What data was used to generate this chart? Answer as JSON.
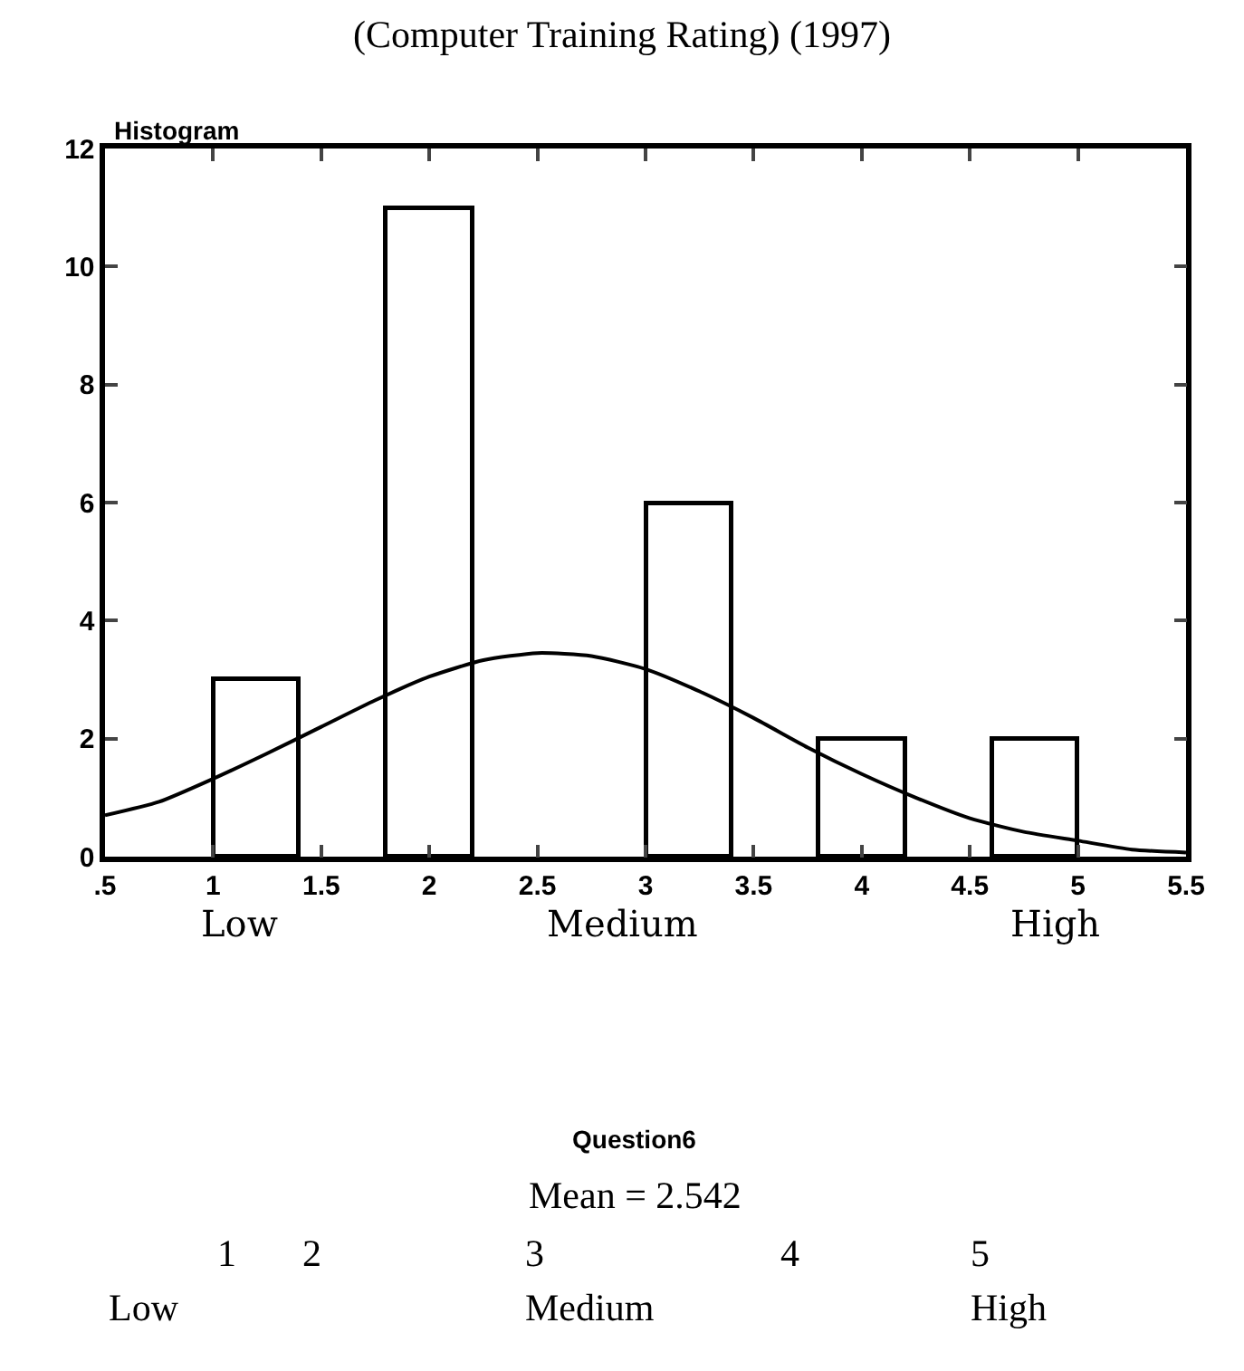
{
  "chart_data": {
    "type": "histogram",
    "title": "(Computer Training Rating) (1997)",
    "subtitle": "Histogram",
    "bins": [
      1.0,
      1.4,
      1.8,
      2.2,
      2.6,
      3.0,
      3.4,
      3.8,
      4.2,
      4.6,
      5.0
    ],
    "series": [
      {
        "color": "#ffffff",
        "values": [
          3,
          0,
          11,
          0,
          0,
          6,
          0,
          2,
          0,
          2
        ]
      },
      {
        "type": "line",
        "color": "#000000",
        "x": [
          0.5,
          0.75,
          1,
          1.25,
          1.5,
          1.75,
          2,
          2.25,
          2.5,
          2.75,
          3,
          3.25,
          3.5,
          3.75,
          4,
          4.25,
          4.5,
          4.75,
          5,
          5.25,
          5.5
        ],
        "values": [
          0.7,
          0.93,
          1.32,
          1.75,
          2.2,
          2.65,
          3.05,
          3.33,
          3.45,
          3.4,
          3.18,
          2.8,
          2.35,
          1.85,
          1.4,
          1.0,
          0.65,
          0.42,
          0.27,
          0.12,
          0.07
        ]
      }
    ],
    "xlim": [
      0.5,
      5.5
    ],
    "xticks": [
      {
        "value": 0.5,
        "label": ".5"
      },
      1,
      1.5,
      2,
      2.5,
      3,
      3.5,
      4,
      4.5,
      5,
      5.5
    ],
    "ylim": [
      0,
      12
    ],
    "yticks": [
      0,
      2,
      4,
      6,
      8,
      10,
      12
    ],
    "marker": "none",
    "line_style": "solid",
    "annotations": [
      "Low",
      "Medium",
      "High",
      "Question6",
      "Mean = 2.542",
      "1",
      "2",
      "3",
      "4",
      "5",
      "Low",
      "Medium",
      "High"
    ]
  }
}
